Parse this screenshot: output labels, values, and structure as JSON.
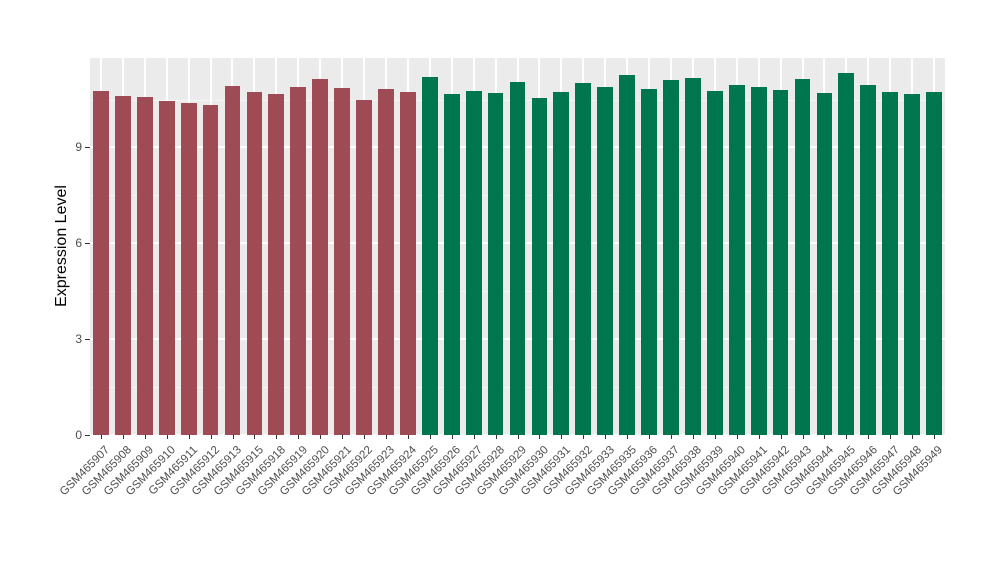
{
  "chart_data": {
    "type": "bar",
    "title": "",
    "xlabel": "",
    "ylabel": "Expression Level",
    "ylim": [
      0,
      11.8
    ],
    "yticks": [
      0,
      3,
      6,
      9
    ],
    "yticks_minor": [
      1.5,
      4.5,
      7.5,
      10.5
    ],
    "grid": true,
    "legend": "none",
    "categories": [
      "GSM465907",
      "GSM465908",
      "GSM465909",
      "GSM465910",
      "GSM465911",
      "GSM465912",
      "GSM465913",
      "GSM465915",
      "GSM465918",
      "GSM465919",
      "GSM465920",
      "GSM465921",
      "GSM465922",
      "GSM465923",
      "GSM465924",
      "GSM465925",
      "GSM465926",
      "GSM465927",
      "GSM465928",
      "GSM465929",
      "GSM465930",
      "GSM465931",
      "GSM465932",
      "GSM465933",
      "GSM465935",
      "GSM465936",
      "GSM465937",
      "GSM465938",
      "GSM465939",
      "GSM465940",
      "GSM465941",
      "GSM465942",
      "GSM465943",
      "GSM465944",
      "GSM465945",
      "GSM465946",
      "GSM465947",
      "GSM465948",
      "GSM465949"
    ],
    "values": [
      10.76,
      10.62,
      10.58,
      10.45,
      10.38,
      10.33,
      10.92,
      10.74,
      10.67,
      10.89,
      11.15,
      10.86,
      10.5,
      10.83,
      10.74,
      11.2,
      10.67,
      10.76,
      10.72,
      11.05,
      10.54,
      10.73,
      11.01,
      10.88,
      11.28,
      10.82,
      11.12,
      11.16,
      10.76,
      10.94,
      10.88,
      10.79,
      11.13,
      10.72,
      11.33,
      10.97,
      10.73,
      10.66,
      10.74
    ],
    "group_index": [
      0,
      0,
      0,
      0,
      0,
      0,
      0,
      0,
      0,
      0,
      0,
      0,
      0,
      0,
      0,
      1,
      1,
      1,
      1,
      1,
      1,
      1,
      1,
      1,
      1,
      1,
      1,
      1,
      1,
      1,
      1,
      1,
      1,
      1,
      1,
      1,
      1,
      1,
      1
    ],
    "group_colors": [
      "#9E4B55",
      "#00764F"
    ],
    "panel_bg": "#EBEBEB",
    "grid_color": "#FFFFFF",
    "tick_text_color": "#4D4D4D",
    "axis_title_color": "#000000"
  }
}
